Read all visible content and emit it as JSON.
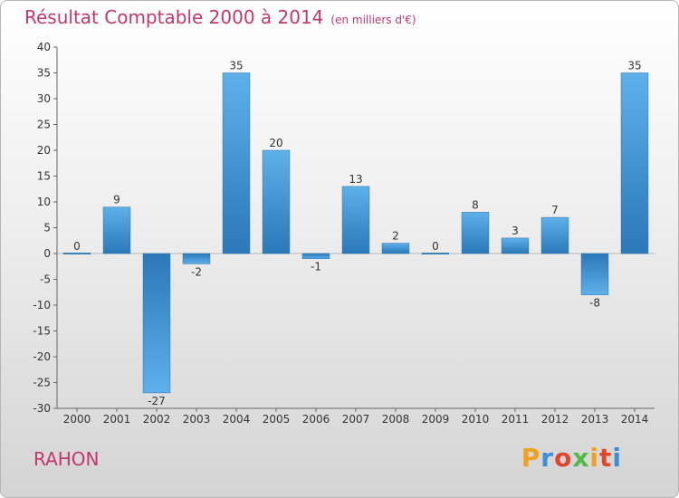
{
  "chart_data": {
    "type": "bar",
    "title": "Résultat Comptable 2000 à 2014",
    "subtitle": "(en milliers d'€)",
    "categories": [
      "2000",
      "2001",
      "2002",
      "2003",
      "2004",
      "2005",
      "2006",
      "2007",
      "2008",
      "2009",
      "2010",
      "2011",
      "2012",
      "2013",
      "2014"
    ],
    "values": [
      0,
      9,
      -27,
      -2,
      35,
      20,
      -1,
      13,
      2,
      0,
      8,
      3,
      7,
      -8,
      35
    ],
    "value_labels": [
      "0",
      "9",
      "-27",
      "-2",
      "35",
      "20",
      "-1",
      "13",
      "2",
      "0",
      "8",
      "3",
      "7",
      "-8",
      "35"
    ],
    "ylim": [
      -30,
      40
    ],
    "yticks": [
      -30,
      -25,
      -20,
      -15,
      -10,
      -5,
      0,
      5,
      10,
      15,
      20,
      25,
      30,
      35,
      40
    ],
    "ytick_labels": [
      "-30",
      "-25",
      "-20",
      "-15",
      "-10",
      "-5",
      "0",
      "5",
      "10",
      "15",
      "20",
      "25",
      "30",
      "35",
      "40"
    ],
    "xlabel": "",
    "ylabel": "",
    "grid": false,
    "bar_color": "#3d8fd1"
  },
  "footer": {
    "place": "RAHON",
    "brand_parts": [
      "P",
      "r",
      "o",
      "x",
      "i",
      "t",
      "i"
    ]
  }
}
